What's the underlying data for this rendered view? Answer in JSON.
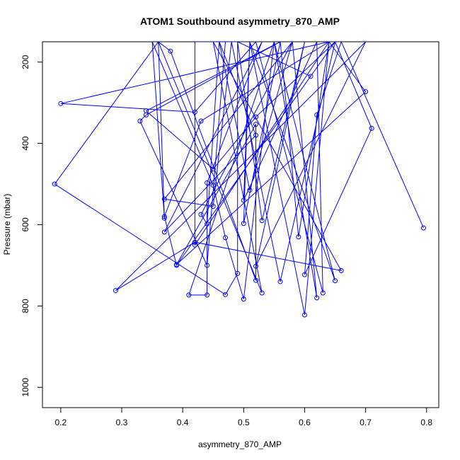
{
  "chart_data": {
    "type": "line",
    "title": "ATOM1 Southbound asymmetry_870_AMP",
    "xlabel": "asymmetry_870_AMP",
    "ylabel": "Pressure (mbar)",
    "xlim": [
      0.17,
      0.82
    ],
    "ylim": [
      1050,
      150
    ],
    "y_reversed": true,
    "x_ticks": [
      "0.2",
      "0.3",
      "0.4",
      "0.5",
      "0.6",
      "0.7",
      "0.8"
    ],
    "x_tick_values": [
      0.2,
      0.3,
      0.4,
      0.5,
      0.6,
      0.7,
      0.8
    ],
    "y_ticks": [
      "200",
      "400",
      "600",
      "800",
      "1000"
    ],
    "y_tick_values": [
      200,
      400,
      600,
      800,
      1000
    ],
    "line_color": "#0000ff",
    "marker": "open-circle",
    "series": [
      {
        "x": [
          0.795,
          0.66,
          0.62,
          0.6,
          0.71,
          0.65,
          0.56,
          0.48,
          0.45,
          0.37,
          0.58,
          0.62,
          0.55,
          0.41,
          0.44,
          0.44,
          0.53,
          0.37,
          0.52,
          0.46,
          0.51,
          0.58,
          0.43,
          0.44,
          0.46,
          0.48,
          0.42,
          0.42,
          0.64,
          0.7,
          0.39,
          0.52,
          0.52,
          0.38,
          0.36,
          0.53,
          0.45,
          0.66,
          0.42,
          0.29,
          0.7,
          0.52,
          0.6,
          0.53,
          0.49,
          0.47,
          0.44,
          0.33,
          0.34,
          0.56,
          0.59,
          0.64,
          0.43,
          0.37,
          0.39,
          0.65,
          0.52,
          0.45,
          0.34,
          0.56,
          0.5,
          0.51,
          0.6,
          0.64,
          0.2,
          0.42,
          0.52,
          0.63,
          0.62,
          0.5,
          0.51,
          0.65,
          0.55,
          0.5,
          0.47,
          0.45,
          0.35,
          0.37,
          0.36,
          0.19,
          0.47,
          0.49,
          0.49,
          0.61
        ],
        "y": [
          608,
          150,
          330,
          723,
          363,
          150,
          740,
          150,
          555,
          537,
          150,
          780,
          150,
          773,
          773,
          497,
          150,
          618,
          380,
          150,
          515,
          150,
          575,
          598,
          150,
          150,
          150,
          650,
          150,
          273,
          698,
          353,
          737,
          173,
          150,
          768,
          150,
          713,
          643,
          762,
          150,
          702,
          150,
          590,
          150,
          150,
          700,
          345,
          330,
          150,
          630,
          150,
          345,
          580,
          700,
          150,
          335,
          463,
          320,
          150,
          597,
          150,
          822,
          150,
          302,
          323,
          150,
          768,
          150,
          540,
          150,
          738,
          150,
          783,
          632,
          503,
          150,
          584,
          150,
          500,
          772,
          720,
          150,
          235
        ]
      }
    ]
  }
}
